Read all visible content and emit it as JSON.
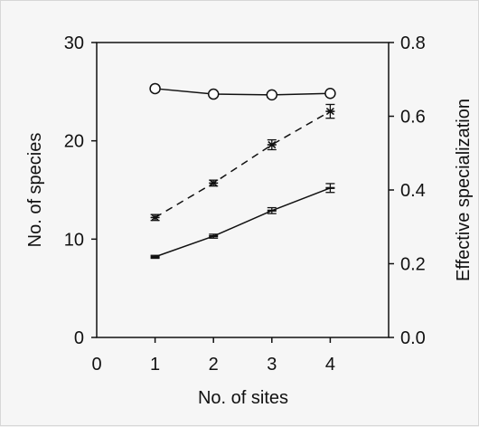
{
  "chart_data": {
    "type": "line",
    "title": "",
    "xlabel": "No. of sites",
    "ylabel_left": "No. of species",
    "ylabel_right": "Effective specialization",
    "x_ticks": [
      "0",
      "1",
      "2",
      "3",
      "4"
    ],
    "xlim": [
      0,
      5
    ],
    "y_left_ticks": [
      "0",
      "10",
      "20",
      "30"
    ],
    "ylim_left": [
      0,
      30
    ],
    "y_right_ticks": [
      "0.0",
      "0.2",
      "0.4",
      "0.6",
      "0.8"
    ],
    "ylim_right": [
      0,
      0.8
    ],
    "grid": false,
    "legend": "none",
    "series": [
      {
        "axis": "right",
        "style": "solid-open-circle",
        "x": [
          1,
          2,
          3,
          4
        ],
        "y": [
          0.675,
          0.66,
          0.658,
          0.662
        ],
        "err": [
          0,
          0,
          0,
          0
        ]
      },
      {
        "axis": "left",
        "style": "dashed-star",
        "x": [
          1,
          2,
          3,
          4
        ],
        "y": [
          12.2,
          15.7,
          19.6,
          23.0
        ],
        "err": [
          0.3,
          0.3,
          0.5,
          0.7
        ]
      },
      {
        "axis": "left",
        "style": "solid-dash",
        "x": [
          1,
          2,
          3,
          4
        ],
        "y": [
          8.2,
          10.3,
          12.9,
          15.2
        ],
        "err": [
          0.15,
          0.2,
          0.3,
          0.45
        ]
      }
    ]
  }
}
